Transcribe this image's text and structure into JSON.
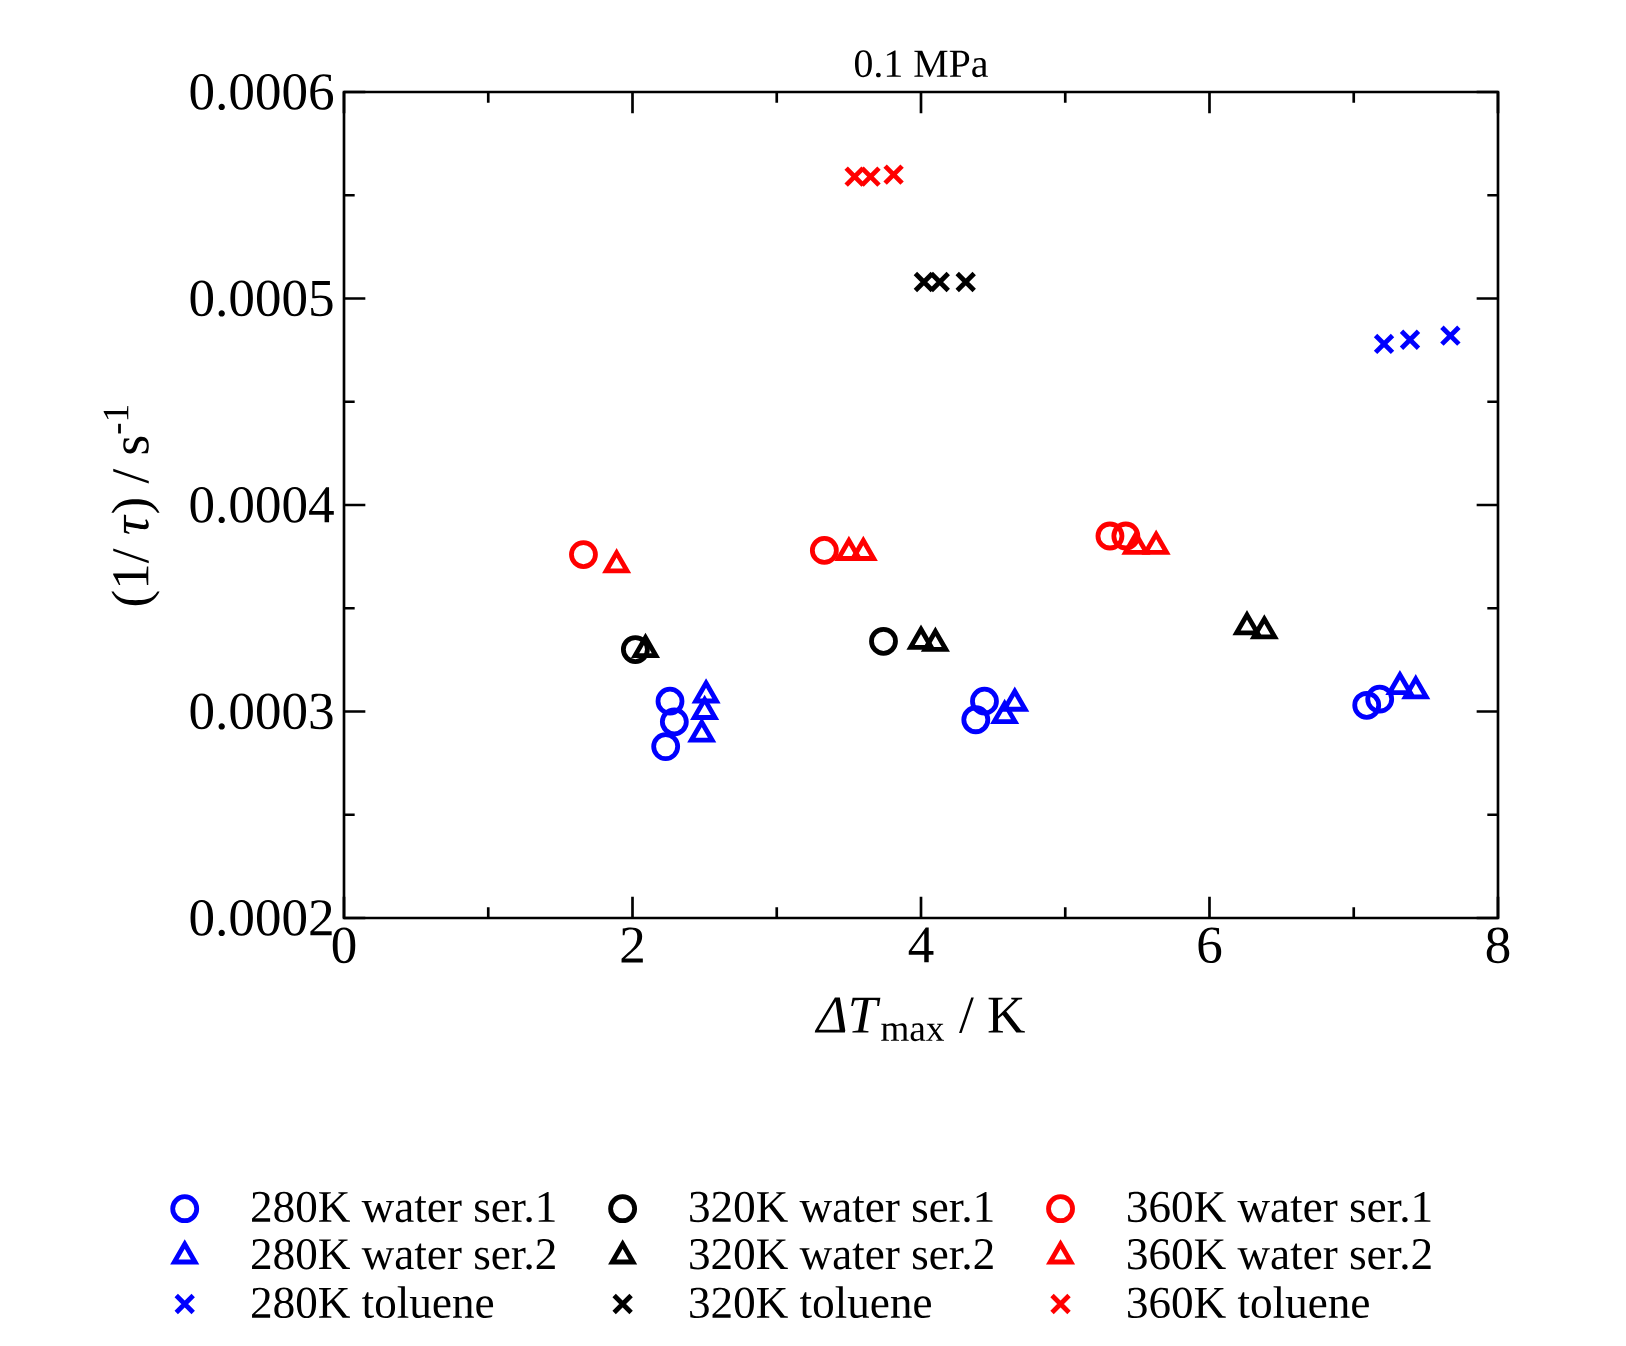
{
  "chart_data": {
    "type": "scatter",
    "title": "0.1 MPa",
    "xlabel": "*ΔT*$_{max}$ / K",
    "ylabel": "(1/ *τ*) / s$^{-1}$",
    "xlim": [
      0,
      8
    ],
    "xticks": [
      0,
      2,
      4,
      6,
      8
    ],
    "ylim": [
      0.0002,
      0.0006
    ],
    "yticks": [
      0.0002,
      0.0003,
      0.0004,
      0.0005,
      0.0006
    ],
    "legend": "bottom",
    "series": [
      {
        "name": "280K water ser.1",
        "color": "#0000ff",
        "marker": "circle",
        "x": [
          2.26,
          2.29,
          2.23,
          4.38,
          4.44,
          7.09,
          7.18
        ],
        "values": [
          0.000305,
          0.000295,
          0.000283,
          0.000296,
          0.000305,
          0.000303,
          0.000306
        ]
      },
      {
        "name": "280K water ser.2",
        "color": "#0000ff",
        "marker": "triangle",
        "x": [
          2.51,
          2.5,
          2.48,
          4.58,
          4.65,
          7.32,
          7.43
        ],
        "values": [
          0.000308,
          0.0003,
          0.000289,
          0.000298,
          0.000304,
          0.000312,
          0.00031
        ]
      },
      {
        "name": "280K toluene",
        "color": "#0000ff",
        "marker": "cross",
        "x": [
          7.21,
          7.39,
          7.67
        ],
        "values": [
          0.000478,
          0.00048,
          0.000482
        ]
      },
      {
        "name": "320K water ser.1",
        "color": "#000000",
        "marker": "circle",
        "x": [
          2.02,
          3.74
        ],
        "values": [
          0.00033,
          0.000334
        ]
      },
      {
        "name": "320K water ser.2",
        "color": "#000000",
        "marker": "triangle",
        "x": [
          2.09,
          4.0,
          4.1,
          6.26,
          6.38
        ],
        "values": [
          0.00033,
          0.000334,
          0.000333,
          0.000341,
          0.000339
        ]
      },
      {
        "name": "320K toluene",
        "color": "#000000",
        "marker": "cross",
        "x": [
          4.02,
          4.13,
          4.31
        ],
        "values": [
          0.000508,
          0.000508,
          0.000508
        ]
      },
      {
        "name": "360K water ser.1",
        "color": "#ff0000",
        "marker": "circle",
        "x": [
          1.66,
          3.33,
          5.31,
          5.42
        ],
        "values": [
          0.000376,
          0.000378,
          0.000385,
          0.000385
        ]
      },
      {
        "name": "360K water ser.2",
        "color": "#ff0000",
        "marker": "triangle",
        "x": [
          1.89,
          3.5,
          3.6,
          5.49,
          5.63
        ],
        "values": [
          0.000371,
          0.000377,
          0.000377,
          0.00038,
          0.00038
        ]
      },
      {
        "name": "360K toluene",
        "color": "#ff0000",
        "marker": "cross",
        "x": [
          3.54,
          3.65,
          3.81
        ],
        "values": [
          0.000559,
          0.000559,
          0.00056
        ]
      }
    ]
  }
}
